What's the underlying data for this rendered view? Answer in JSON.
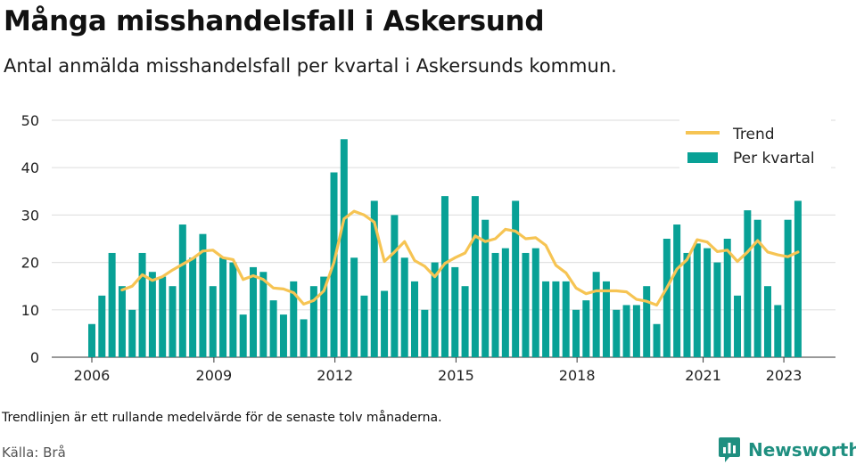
{
  "header": {
    "title": "Många misshandelsfall i Askersund",
    "subtitle": "Antal anmälda misshandelsfall per kvartal i Askersunds kommun."
  },
  "footer": {
    "note": "Trendlinjen är ett rullande medelvärde för de senaste tolv månaderna.",
    "source": "Källa: Brå",
    "brand": "Newsworthy"
  },
  "colors": {
    "bar": "#08a196",
    "trend": "#f6c453",
    "grid": "#e2e2e2",
    "brand": "#1f8f80"
  },
  "chart_data": {
    "type": "bar",
    "title": "Många misshandelsfall i Askersund",
    "xlabel": "",
    "ylabel": "",
    "ylim": [
      0,
      50
    ],
    "yticks": [
      0,
      10,
      20,
      30,
      40,
      50
    ],
    "xticks": [
      "2006",
      "2009",
      "2012",
      "2015",
      "2018",
      "2021",
      "2023"
    ],
    "grid": true,
    "legend_position": "top-right",
    "series": [
      {
        "name": "Per kvartal",
        "type": "bar",
        "values": [
          7,
          13,
          22,
          15,
          10,
          22,
          18,
          17,
          15,
          28,
          21,
          26,
          15,
          21,
          20,
          9,
          19,
          18,
          12,
          9,
          16,
          8,
          15,
          17,
          39,
          46,
          21,
          13,
          33,
          14,
          30,
          21,
          16,
          10,
          20,
          34,
          19,
          15,
          34,
          29,
          22,
          23,
          33,
          22,
          23,
          16,
          16,
          16,
          10,
          12,
          18,
          16,
          10,
          11,
          11,
          15,
          7,
          25,
          28,
          22,
          24,
          23,
          20,
          25,
          13,
          31,
          29,
          15,
          11,
          29,
          33
        ]
      },
      {
        "name": "Trend",
        "type": "line",
        "start_index": 3,
        "values": [
          14.2,
          15.0,
          17.4,
          16.2,
          17.0,
          18.4,
          19.6,
          20.8,
          22.4,
          22.6,
          21.0,
          20.6,
          16.4,
          17.2,
          16.4,
          14.6,
          14.4,
          13.6,
          11.2,
          12.0,
          14.0,
          20.0,
          29.2,
          30.8,
          30.0,
          28.5,
          20.2,
          22.2,
          24.4,
          20.4,
          19.2,
          17.0,
          19.8,
          21.0,
          22.0,
          25.6,
          24.4,
          25.0,
          27.0,
          26.6,
          25.0,
          25.2,
          23.6,
          19.4,
          17.8,
          14.6,
          13.4,
          14.0,
          14.0,
          14.0,
          13.8,
          12.2,
          11.8,
          11.0,
          14.6,
          18.6,
          20.6,
          24.8,
          24.3,
          22.3,
          22.6,
          20.2,
          22.2,
          24.6,
          22.2,
          21.6,
          21.2,
          22.2
        ]
      }
    ]
  }
}
